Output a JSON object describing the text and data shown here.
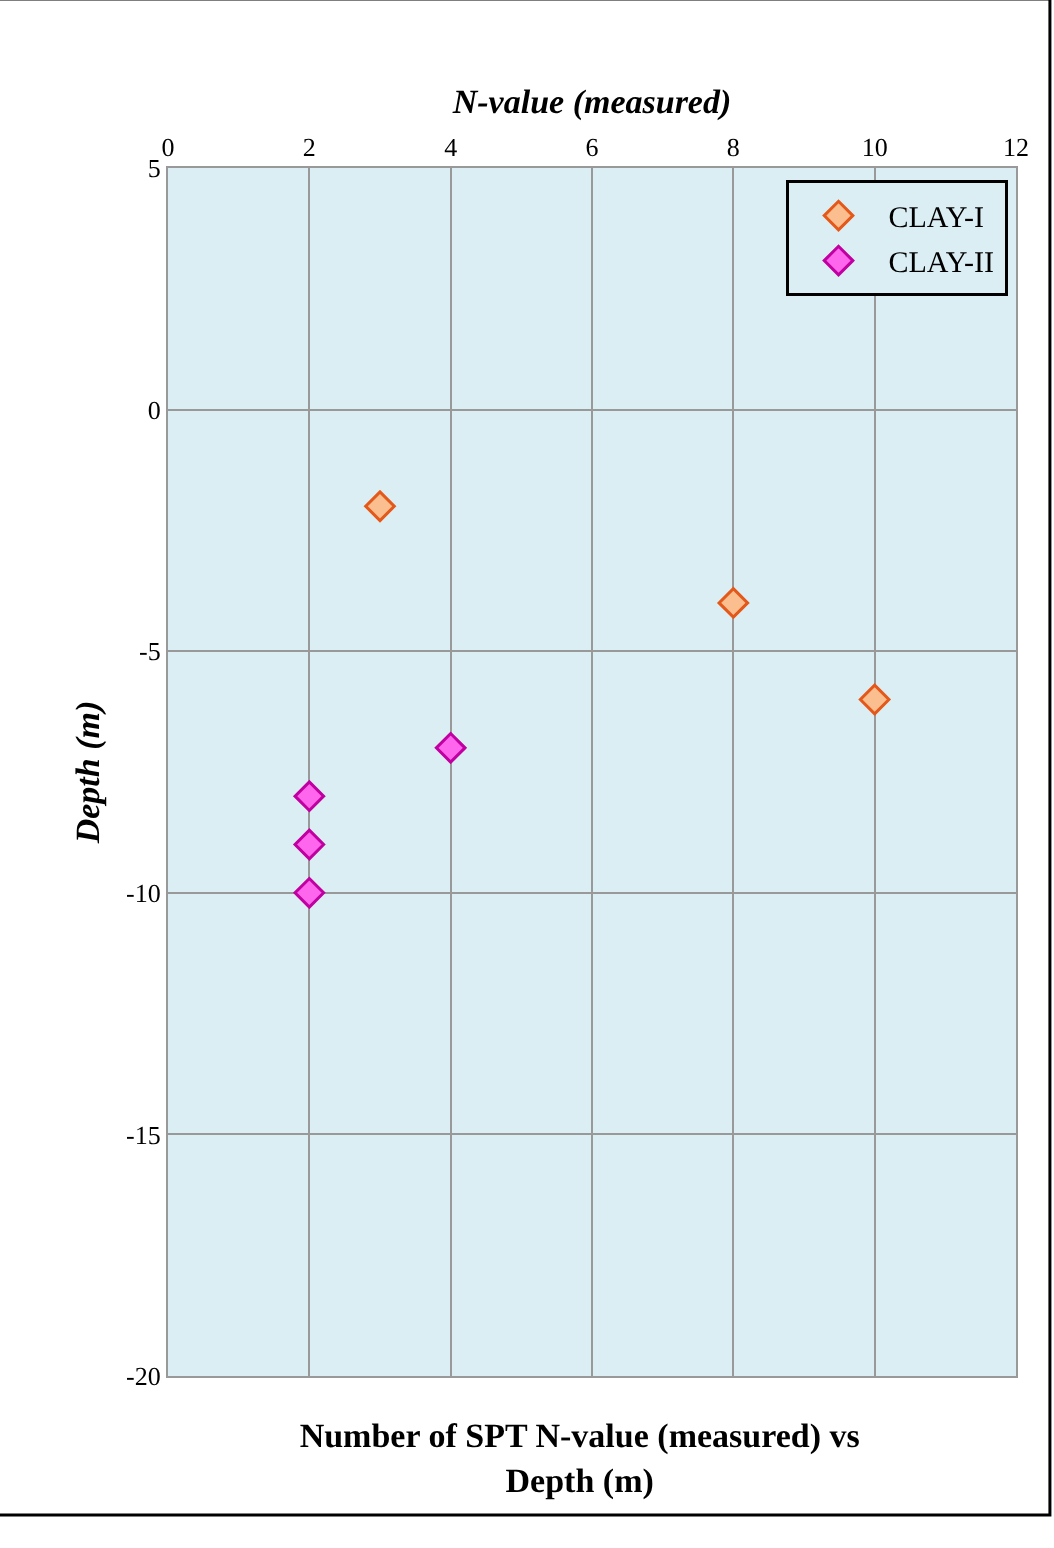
{
  "chart_data": {
    "type": "scatter",
    "title": "Number of SPT N-value (measured) vs Depth (m)",
    "xlabel": "N-value (measured)",
    "ylabel": "Depth (m)",
    "series": [
      {
        "name": "CLAY-I",
        "color": "#fbbf8f",
        "x": [
          3,
          8,
          10
        ],
        "values": [
          -2,
          -4,
          -6
        ]
      },
      {
        "name": "CLAY-II",
        "color": "#ff66ee",
        "x": [
          2,
          2,
          2,
          4
        ],
        "values": [
          -8,
          -9,
          -10,
          -7
        ]
      }
    ],
    "xlim": [
      0,
      12
    ],
    "xticks": [
      0,
      2,
      4,
      6,
      8,
      10,
      12
    ],
    "ylim": [
      -20,
      5
    ],
    "yticks": [
      5,
      0,
      -5,
      -10,
      -15,
      -20
    ],
    "grid": true,
    "legend": "top right",
    "marker": "diamond"
  }
}
